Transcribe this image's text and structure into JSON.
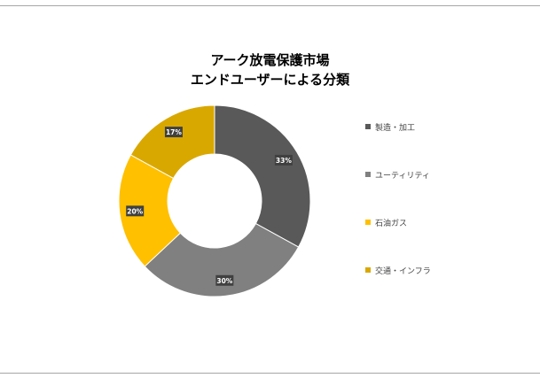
{
  "chart_data": {
    "type": "donut",
    "title_lines": [
      "アーク放電保護市場",
      "エンドユーザーによる分類"
    ],
    "categories": [
      "製造・加工",
      "ユーティリティ",
      "石油ガス",
      "交通・インフラ"
    ],
    "values": [
      33,
      30,
      20,
      17
    ],
    "labels": [
      "33%",
      "30%",
      "20%",
      "17%"
    ],
    "colors": [
      "#595959",
      "#808080",
      "#ffc000",
      "#d9a800"
    ],
    "legend_position": "right"
  }
}
